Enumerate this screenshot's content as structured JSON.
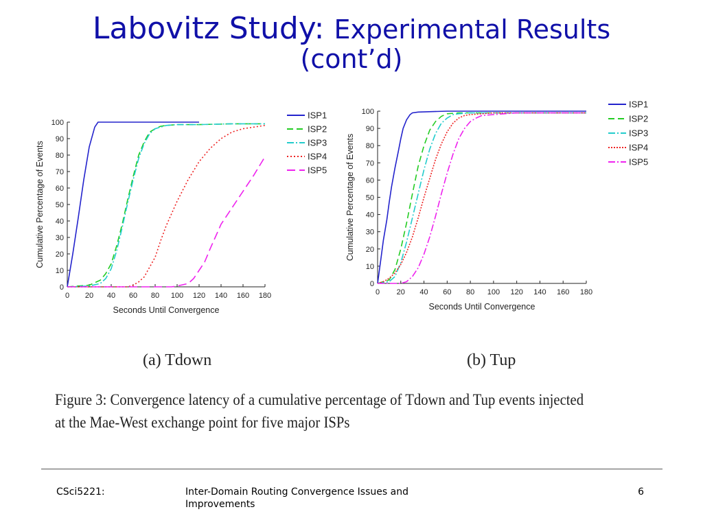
{
  "slide": {
    "title_main": "Labovitz Study: ",
    "title_sub": "Experimental Results",
    "title_line2": "(cont’d)",
    "subcaption_a": "(a)  Tdown",
    "subcaption_b": "(b)  Tup",
    "figure_caption": "Figure 3: Convergence latency of a cumulative percentage of Tdown and Tup events injected at the Mae-West exchange point for five major ISPs",
    "footer_left": "CSci5221:",
    "footer_center": "Inter-Domain Routing Convergence Issues and Improvements",
    "footer_page": "6"
  },
  "chart_data": [
    {
      "type": "line",
      "panel": "(a) Tdown",
      "xlabel": "Seconds Until Convergence",
      "ylabel": "Cumulative Percentage of Events",
      "xlim": [
        0,
        180
      ],
      "ylim": [
        0,
        100
      ],
      "xticks": [
        "0",
        "20",
        "40",
        "60",
        "80",
        "100",
        "120",
        "140",
        "160",
        "180"
      ],
      "yticks": [
        "0",
        "10",
        "20",
        "30",
        "40",
        "50",
        "60",
        "70",
        "80",
        "90",
        "100"
      ],
      "grid": false,
      "legend_position": "right",
      "series": [
        {
          "name": "ISP1",
          "color": "#2222cc",
          "dash": "",
          "x": [
            0,
            5,
            10,
            15,
            20,
            25,
            28,
            32,
            60,
            90,
            120
          ],
          "y": [
            0,
            20,
            42,
            65,
            85,
            97,
            100,
            100,
            100,
            100,
            100
          ]
        },
        {
          "name": "ISP2",
          "color": "#22cc22",
          "dash": "9,5",
          "x": [
            0,
            20,
            30,
            35,
            40,
            45,
            50,
            55,
            60,
            65,
            70,
            75,
            80,
            85,
            90,
            100,
            120,
            150,
            180
          ],
          "y": [
            0,
            1,
            4,
            8,
            14,
            25,
            38,
            53,
            67,
            80,
            88,
            94,
            96,
            97.5,
            98,
            98.5,
            98.5,
            99,
            99
          ]
        },
        {
          "name": "ISP3",
          "color": "#22cccc",
          "dash": "10,3,2,3",
          "x": [
            0,
            20,
            30,
            35,
            40,
            45,
            50,
            55,
            60,
            65,
            70,
            75,
            80,
            85,
            90,
            100,
            120,
            150,
            180
          ],
          "y": [
            0,
            0.5,
            2,
            5,
            11,
            22,
            36,
            51,
            65,
            78,
            87,
            93,
            96,
            97,
            98,
            98.5,
            98.5,
            99,
            99
          ]
        },
        {
          "name": "ISP4",
          "color": "#ee2222",
          "dash": "2,3",
          "x": [
            0,
            55,
            60,
            65,
            70,
            80,
            85,
            90,
            100,
            110,
            120,
            130,
            140,
            150,
            160,
            170,
            180
          ],
          "y": [
            0,
            0,
            1,
            3,
            6,
            18,
            28,
            37,
            52,
            65,
            76,
            84,
            90,
            94,
            96,
            97,
            98
          ]
        },
        {
          "name": "ISP5",
          "color": "#ee22ee",
          "dash": "12,6",
          "x": [
            0,
            95,
            100,
            110,
            115,
            120,
            125,
            130,
            140,
            150,
            160,
            170,
            180
          ],
          "y": [
            0,
            0,
            0.5,
            2,
            5,
            10,
            15,
            23,
            38,
            48,
            58,
            68,
            79
          ]
        }
      ]
    },
    {
      "type": "line",
      "panel": "(b) Tup",
      "xlabel": "Seconds Until Convergence",
      "ylabel": "Cumulative Percentage of Events",
      "xlim": [
        0,
        180
      ],
      "ylim": [
        0,
        100
      ],
      "xticks": [
        "0",
        "20",
        "40",
        "60",
        "80",
        "100",
        "120",
        "140",
        "160",
        "180"
      ],
      "yticks": [
        "0",
        "10",
        "20",
        "30",
        "40",
        "50",
        "60",
        "70",
        "80",
        "90",
        "100"
      ],
      "grid": false,
      "legend_position": "right",
      "series": [
        {
          "name": "ISP1",
          "color": "#2222cc",
          "dash": "",
          "x": [
            0,
            3,
            5,
            8,
            10,
            12,
            15,
            18,
            20,
            22,
            25,
            28,
            30,
            35,
            60,
            100,
            140,
            180
          ],
          "y": [
            0,
            15,
            25,
            37,
            47,
            56,
            67,
            77,
            84,
            90,
            95,
            98,
            99,
            99.5,
            100,
            100,
            100,
            100
          ]
        },
        {
          "name": "ISP2",
          "color": "#22cc22",
          "dash": "9,5",
          "x": [
            0,
            10,
            15,
            20,
            25,
            30,
            35,
            40,
            45,
            50,
            55,
            60,
            70,
            80,
            100,
            140,
            180
          ],
          "y": [
            0,
            2,
            8,
            20,
            35,
            52,
            68,
            80,
            89,
            94,
            97,
            98.5,
            99,
            99,
            99,
            99,
            99
          ]
        },
        {
          "name": "ISP3",
          "color": "#22cccc",
          "dash": "10,3,2,3",
          "x": [
            0,
            10,
            15,
            20,
            25,
            30,
            35,
            40,
            45,
            50,
            55,
            60,
            65,
            70,
            80,
            100,
            140,
            180
          ],
          "y": [
            0,
            1,
            4,
            12,
            24,
            38,
            52,
            66,
            78,
            87,
            93,
            96,
            98,
            98.5,
            99,
            99,
            99,
            99
          ]
        },
        {
          "name": "ISP4",
          "color": "#ee2222",
          "dash": "2,2",
          "x": [
            0,
            5,
            10,
            15,
            20,
            25,
            30,
            35,
            40,
            45,
            50,
            55,
            60,
            65,
            70,
            75,
            80,
            90,
            100,
            140,
            180
          ],
          "y": [
            0,
            1,
            3,
            6,
            11,
            18,
            27,
            38,
            50,
            61,
            72,
            81,
            88,
            93,
            96,
            97.5,
            98,
            98.5,
            99,
            99,
            99
          ]
        },
        {
          "name": "ISP5",
          "color": "#ee22ee",
          "dash": "10,3,2,3",
          "x": [
            0,
            20,
            25,
            30,
            35,
            40,
            45,
            50,
            55,
            60,
            65,
            70,
            75,
            80,
            85,
            90,
            100,
            120,
            140,
            180
          ],
          "y": [
            0,
            0,
            1,
            4,
            9,
            17,
            27,
            39,
            52,
            64,
            75,
            84,
            90,
            94,
            96,
            97.5,
            98,
            99,
            99,
            99
          ]
        }
      ]
    }
  ]
}
